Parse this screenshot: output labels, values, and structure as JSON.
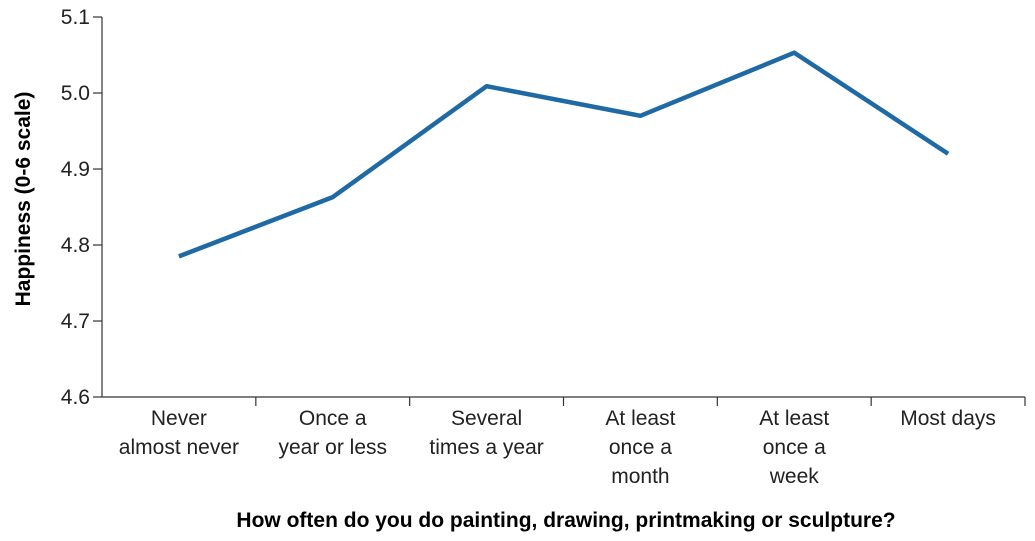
{
  "chart_data": {
    "type": "line",
    "title": "",
    "xlabel": "How often do you do painting, drawing, printmaking or sculpture?",
    "ylabel": "Happiness (0-6 scale)",
    "categories": [
      [
        "Never",
        "almost never"
      ],
      [
        "Once a",
        "year or less"
      ],
      [
        "Several",
        "times a year"
      ],
      [
        "At least",
        "once a",
        "month"
      ],
      [
        "At least",
        "once a",
        "week"
      ],
      [
        "Most days"
      ]
    ],
    "series": [
      {
        "values": [
          4.785,
          4.863,
          5.009,
          4.97,
          5.053,
          4.92
        ]
      }
    ],
    "ylim": [
      4.6,
      5.1
    ],
    "yticks": [
      "4.6",
      "4.7",
      "4.8",
      "4.9",
      "5.0",
      "5.1"
    ],
    "grid": false,
    "legend": "none",
    "colors": {
      "series": "#1F6AA5",
      "axis": "#333333"
    }
  }
}
